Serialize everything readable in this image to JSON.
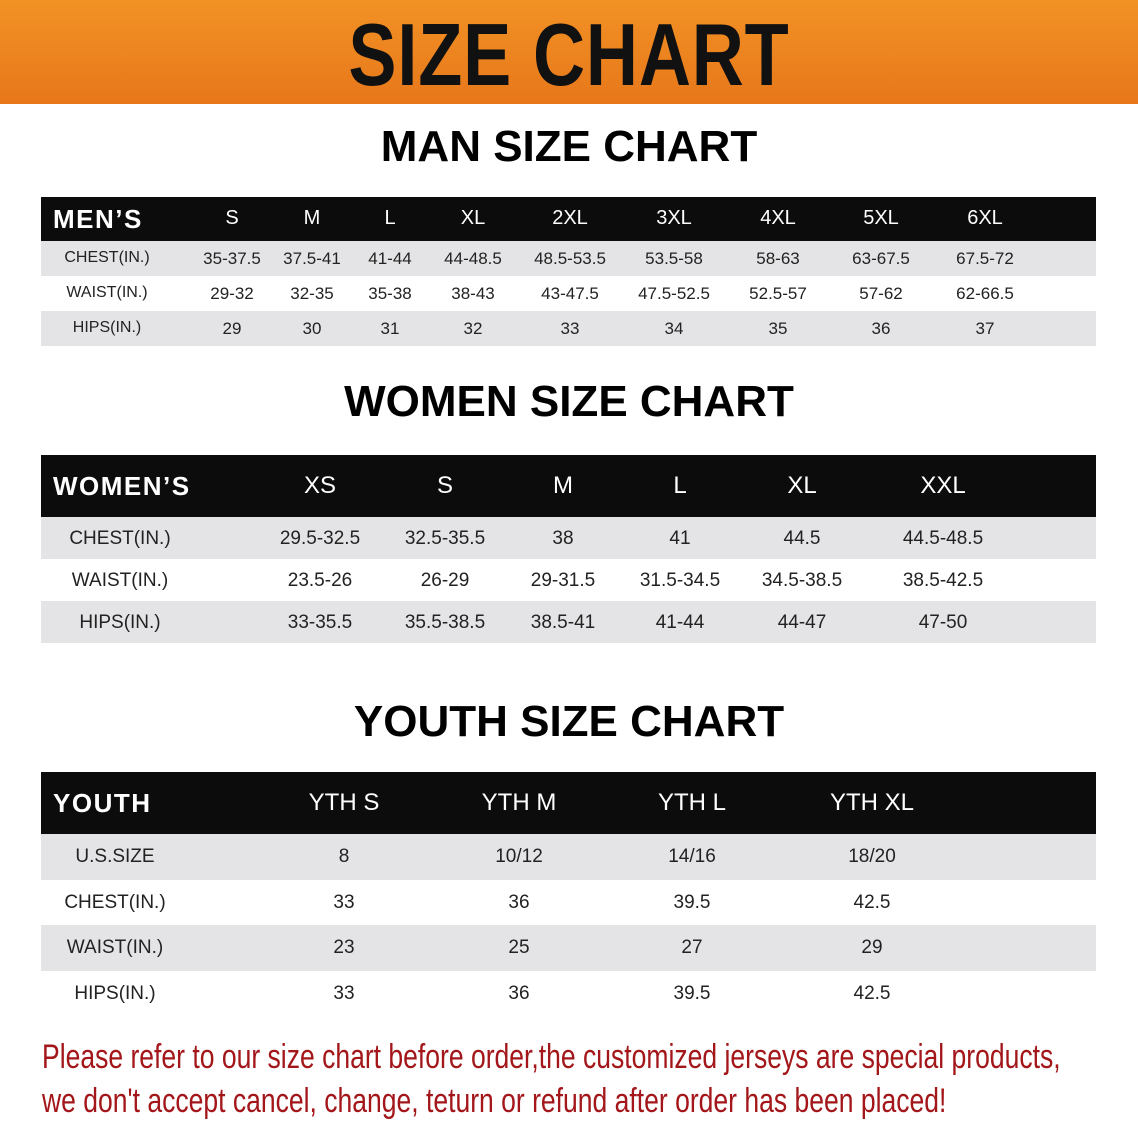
{
  "banner": {
    "title": "SIZE CHART",
    "color": "#ee851f"
  },
  "men": {
    "title": "MAN SIZE CHART",
    "header_label": "MEN’S",
    "sizes": [
      "S",
      "M",
      "L",
      "XL",
      "2XL",
      "3XL",
      "4XL",
      "5XL",
      "6XL"
    ],
    "rows": [
      {
        "label": "CHEST(IN.)",
        "values": [
          "35-37.5",
          "37.5-41",
          "41-44",
          "44-48.5",
          "48.5-53.5",
          "53.5-58",
          "58-63",
          "63-67.5",
          "67.5-72"
        ]
      },
      {
        "label": "WAIST(IN.)",
        "values": [
          "29-32",
          "32-35",
          "35-38",
          "38-43",
          "43-47.5",
          "47.5-52.5",
          "52.5-57",
          "57-62",
          "62-66.5"
        ]
      },
      {
        "label": "HIPS(IN.)",
        "values": [
          "29",
          "30",
          "31",
          "32",
          "33",
          "34",
          "35",
          "36",
          "37"
        ]
      }
    ]
  },
  "women": {
    "title": "WOMEN SIZE CHART",
    "header_label": "WOMEN’S",
    "sizes": [
      "XS",
      "S",
      "M",
      "L",
      "XL",
      "XXL"
    ],
    "rows": [
      {
        "label": "CHEST(IN.)",
        "values": [
          "29.5-32.5",
          "32.5-35.5",
          "38",
          "41",
          "44.5",
          "44.5-48.5"
        ]
      },
      {
        "label": "WAIST(IN.)",
        "values": [
          "23.5-26",
          "26-29",
          "29-31.5",
          "31.5-34.5",
          "34.5-38.5",
          "38.5-42.5"
        ]
      },
      {
        "label": "HIPS(IN.)",
        "values": [
          "33-35.5",
          "35.5-38.5",
          "38.5-41",
          "41-44",
          "44-47",
          "47-50"
        ]
      }
    ]
  },
  "youth": {
    "title": "YOUTH SIZE CHART",
    "header_label": "YOUTH",
    "sizes": [
      "YTH S",
      "YTH M",
      "YTH L",
      "YTH XL"
    ],
    "rows": [
      {
        "label": "U.S.SIZE",
        "values": [
          "8",
          "10/12",
          "14/16",
          "18/20"
        ]
      },
      {
        "label": "CHEST(IN.)",
        "values": [
          "33",
          "36",
          "39.5",
          "42.5"
        ]
      },
      {
        "label": "WAIST(IN.)",
        "values": [
          "23",
          "25",
          "27",
          "29"
        ]
      },
      {
        "label": "HIPS(IN.)",
        "values": [
          "33",
          "36",
          "39.5",
          "42.5"
        ]
      }
    ]
  },
  "notice": {
    "line1": "Please refer to our size chart before order,the customized jerseys are special products,",
    "line2": "we don't accept cancel, change, teturn or refund after order has been placed!",
    "color": "#a3161a"
  }
}
